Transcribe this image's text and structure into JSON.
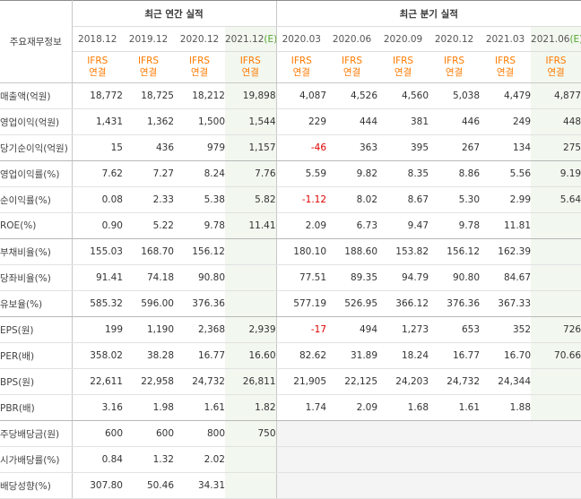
{
  "header": {
    "label_col": "주요재무정보",
    "annual_title": "최근 연간 실적",
    "quarter_title": "최근 분기 실적",
    "ifrs_line1": "IFRS",
    "ifrs_line2": "연결",
    "periods": [
      {
        "label": "2018.12",
        "est": ""
      },
      {
        "label": "2019.12",
        "est": ""
      },
      {
        "label": "2020.12",
        "est": ""
      },
      {
        "label": "2021.12",
        "est": "(E)"
      },
      {
        "label": "2020.03",
        "est": ""
      },
      {
        "label": "2020.06",
        "est": ""
      },
      {
        "label": "2020.09",
        "est": ""
      },
      {
        "label": "2020.12",
        "est": ""
      },
      {
        "label": "2021.03",
        "est": ""
      },
      {
        "label": "2021.06",
        "est": "(E)"
      }
    ]
  },
  "rows": [
    {
      "label": "매출액(억원)",
      "values": [
        "18,772",
        "18,725",
        "18,212",
        "19,898",
        "4,087",
        "4,526",
        "4,560",
        "5,038",
        "4,479",
        "4,877"
      ]
    },
    {
      "label": "영업이익(억원)",
      "values": [
        "1,431",
        "1,362",
        "1,500",
        "1,544",
        "229",
        "444",
        "381",
        "446",
        "249",
        "448"
      ]
    },
    {
      "label": "당기순이익(억원)",
      "values": [
        "15",
        "436",
        "979",
        "1,157",
        "-46",
        "363",
        "395",
        "267",
        "134",
        "275"
      ]
    },
    {
      "label": "영업이익률(%)",
      "values": [
        "7.62",
        "7.27",
        "8.24",
        "7.76",
        "5.59",
        "9.82",
        "8.35",
        "8.86",
        "5.56",
        "9.19"
      ]
    },
    {
      "label": "순이익률(%)",
      "values": [
        "0.08",
        "2.33",
        "5.38",
        "5.82",
        "-1.12",
        "8.02",
        "8.67",
        "5.30",
        "2.99",
        "5.64"
      ]
    },
    {
      "label": "ROE(%)",
      "values": [
        "0.90",
        "5.22",
        "9.78",
        "11.41",
        "2.09",
        "6.73",
        "9.47",
        "9.78",
        "11.81",
        ""
      ]
    },
    {
      "label": "부채비율(%)",
      "values": [
        "155.03",
        "168.70",
        "156.12",
        "",
        "180.10",
        "188.60",
        "153.82",
        "156.12",
        "162.39",
        ""
      ]
    },
    {
      "label": "당좌비율(%)",
      "values": [
        "91.41",
        "74.18",
        "90.80",
        "",
        "77.51",
        "89.35",
        "94.79",
        "90.80",
        "84.67",
        ""
      ]
    },
    {
      "label": "유보율(%)",
      "values": [
        "585.32",
        "596.00",
        "376.36",
        "",
        "577.19",
        "526.95",
        "366.12",
        "376.36",
        "367.33",
        ""
      ]
    },
    {
      "label": "EPS(원)",
      "values": [
        "199",
        "1,190",
        "2,368",
        "2,939",
        "-17",
        "494",
        "1,273",
        "653",
        "352",
        "726"
      ]
    },
    {
      "label": "PER(배)",
      "values": [
        "358.02",
        "38.28",
        "16.77",
        "16.60",
        "82.62",
        "31.89",
        "18.24",
        "16.77",
        "16.70",
        "70.66"
      ]
    },
    {
      "label": "BPS(원)",
      "values": [
        "22,611",
        "22,958",
        "24,732",
        "26,811",
        "21,905",
        "22,125",
        "24,203",
        "24,732",
        "24,344",
        ""
      ]
    },
    {
      "label": "PBR(배)",
      "values": [
        "3.16",
        "1.98",
        "1.61",
        "1.82",
        "1.74",
        "2.09",
        "1.68",
        "1.61",
        "1.88",
        ""
      ]
    },
    {
      "label": "주당배당금(원)",
      "values": [
        "600",
        "600",
        "800",
        "750",
        "",
        "",
        "",
        "",
        "",
        ""
      ]
    },
    {
      "label": "시가배당률(%)",
      "values": [
        "0.84",
        "1.32",
        "2.02",
        "",
        "",
        "",
        "",
        "",
        "",
        ""
      ]
    },
    {
      "label": "배당성향(%)",
      "values": [
        "307.80",
        "50.46",
        "34.31",
        "",
        "",
        "",
        "",
        "",
        "",
        ""
      ]
    }
  ]
}
